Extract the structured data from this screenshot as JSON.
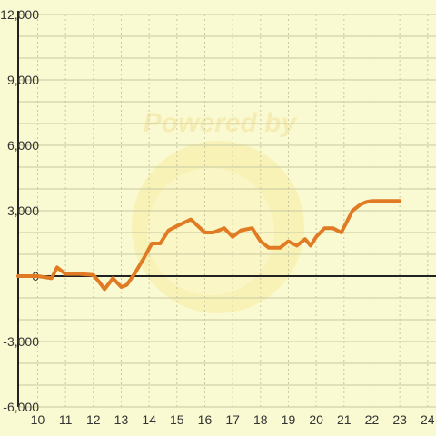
{
  "chart_data": {
    "type": "line",
    "title": "",
    "xlabel": "",
    "ylabel": "",
    "xlim": [
      9.3,
      24.3
    ],
    "ylim": [
      -6000,
      12000
    ],
    "x_ticks": [
      10,
      11,
      12,
      13,
      14,
      15,
      16,
      17,
      18,
      19,
      20,
      21,
      22,
      23,
      24
    ],
    "x_tick_labels": [
      "10",
      "11",
      "12",
      "13",
      "14",
      "15",
      "16",
      "17",
      "18",
      "19",
      "20",
      "21",
      "22",
      "23",
      "24"
    ],
    "y_ticks": [
      12000,
      9000,
      6000,
      3000,
      0,
      -3000,
      -6000
    ],
    "y_tick_labels": [
      "12,000",
      "9,000",
      "6,000",
      "3,000",
      "0",
      "-3,000",
      "-6,000"
    ],
    "grid": true,
    "watermark": "Powered by",
    "colors": {
      "background": "#fafad2",
      "line": "#e07b24",
      "grid": "#c8c8a0",
      "axis": "#222222"
    },
    "series": [
      {
        "name": "",
        "x": [
          9.3,
          10.0,
          10.5,
          10.7,
          11.0,
          11.5,
          12.0,
          12.2,
          12.4,
          12.7,
          13.0,
          13.2,
          13.5,
          13.8,
          14.1,
          14.4,
          14.7,
          15.0,
          15.5,
          16.0,
          16.3,
          16.7,
          17.0,
          17.3,
          17.7,
          18.0,
          18.3,
          18.7,
          19.0,
          19.3,
          19.6,
          19.8,
          20.0,
          20.3,
          20.6,
          20.9,
          21.1,
          21.3,
          21.6,
          21.8,
          22.0,
          22.5,
          23.0
        ],
        "y": [
          0,
          0,
          -100,
          400,
          100,
          100,
          50,
          -250,
          -600,
          -100,
          -500,
          -400,
          150,
          800,
          1500,
          1500,
          2100,
          2300,
          2600,
          2000,
          2000,
          2200,
          1800,
          2100,
          2200,
          1600,
          1300,
          1300,
          1600,
          1400,
          1700,
          1400,
          1800,
          2200,
          2200,
          2000,
          2500,
          3000,
          3300,
          3400,
          3450,
          3450,
          3450
        ]
      }
    ]
  }
}
